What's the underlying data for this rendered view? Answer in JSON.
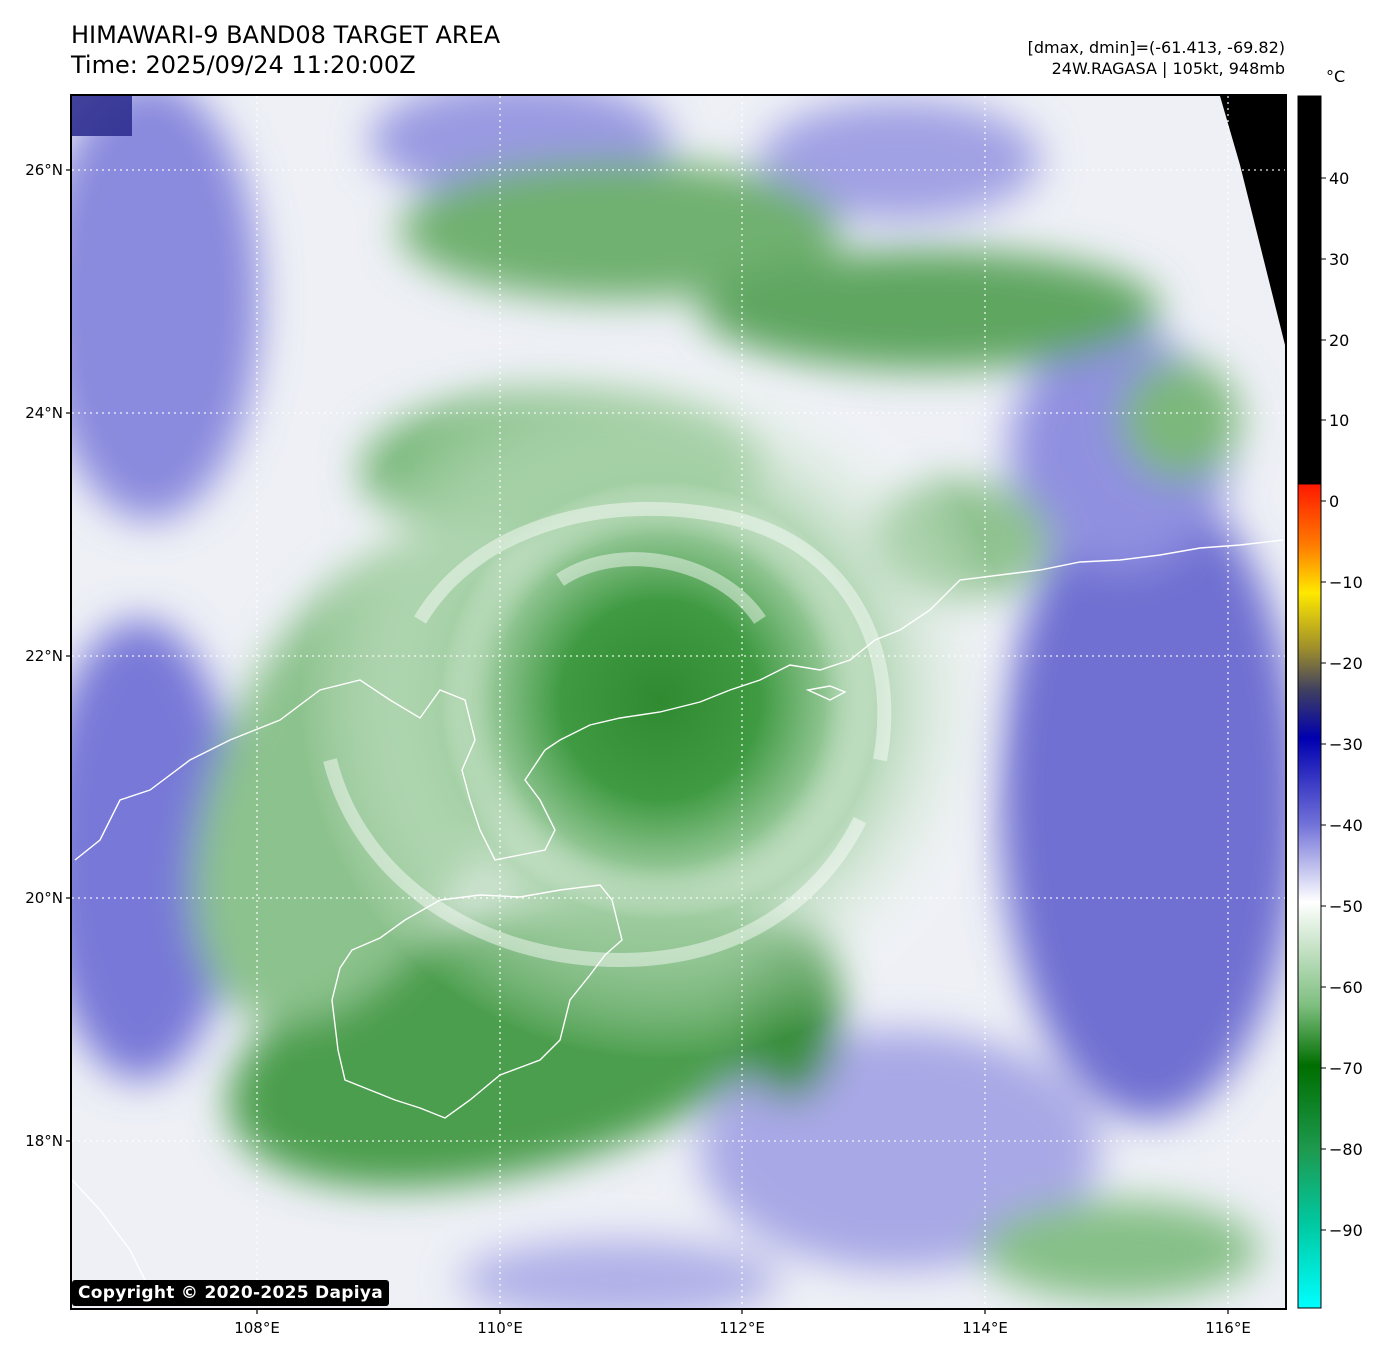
{
  "header": {
    "title": "HIMAWARI-9 BAND08 TARGET AREA",
    "time": "Time: 2025/09/24 11:20:00Z",
    "range": "[dmax, dmin]=(-61.413, -69.82)",
    "storm": "24W.RAGASA | 105kt, 948mb"
  },
  "map": {
    "lat_labels": [
      "26°N",
      "24°N",
      "22°N",
      "20°N",
      "18°N"
    ],
    "lon_labels": [
      "108°E",
      "110°E",
      "112°E",
      "114°E",
      "116°E"
    ]
  },
  "colorbar": {
    "unit": "°C",
    "ticks": [
      "40",
      "30",
      "20",
      "10",
      "0",
      "−10",
      "−20",
      "−30",
      "−40",
      "−50",
      "−60",
      "−70",
      "−80",
      "−90"
    ]
  },
  "copyright": "Copyright © 2020-2025 Dapiya",
  "colors": {
    "green": "#2e8b2e",
    "blue": "#5a5ad0",
    "black": "#000000"
  }
}
